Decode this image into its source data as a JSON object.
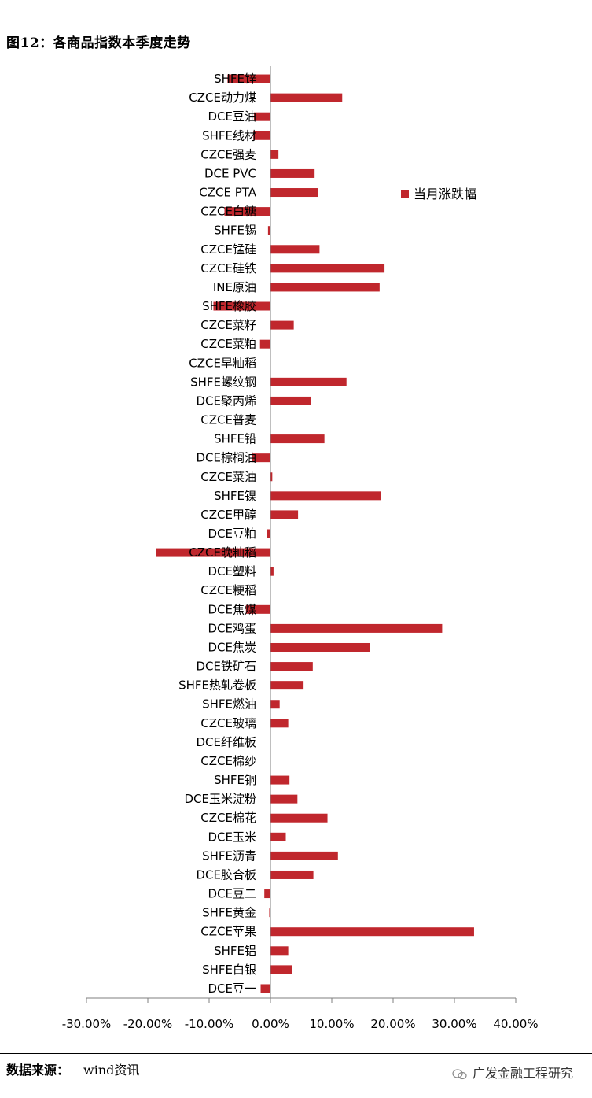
{
  "title": "图12：各商品指数本季度走势",
  "source": {
    "label": "数据来源：",
    "value": "wind资讯"
  },
  "watermark": "广发金融工程研究",
  "colors": {
    "bar": "#c0272d",
    "axis": "#7f7f7f"
  },
  "chart_data": {
    "type": "bar",
    "orientation": "horizontal",
    "legend": {
      "label": "当月涨跌幅",
      "position": "top-right"
    },
    "xlim": [
      -30,
      40
    ],
    "x_ticks": [
      -30,
      -20,
      -10,
      0,
      10,
      20,
      30,
      40
    ],
    "x_tick_labels": [
      "-30.00%",
      "-20.00%",
      "-10.00%",
      "0.00%",
      "10.00%",
      "20.00%",
      "30.00%",
      "40.00%"
    ],
    "categories": [
      "SHFE锌",
      "CZCE动力煤",
      "DCE豆油",
      "SHFE线材",
      "CZCE强麦",
      "DCE PVC",
      "CZCE PTA",
      "CZCE白糖",
      "SHFE锡",
      "CZCE锰硅",
      "CZCE硅铁",
      "INE原油",
      "SHFE橡胶",
      "CZCE菜籽",
      "CZCE菜粕",
      "CZCE早籼稻",
      "SHFE螺纹钢",
      "DCE聚丙烯",
      "CZCE普麦",
      "SHFE铅",
      "DCE棕榈油",
      "CZCE菜油",
      "SHFE镍",
      "CZCE甲醇",
      "DCE豆粕",
      "CZCE晚籼稻",
      "DCE塑料",
      "CZCE粳稻",
      "DCE焦煤",
      "DCE鸡蛋",
      "DCE焦炭",
      "DCE铁矿石",
      "SHFE热轧卷板",
      "SHFE燃油",
      "CZCE玻璃",
      "DCE纤维板",
      "CZCE棉纱",
      "SHFE铜",
      "DCE玉米淀粉",
      "CZCE棉花",
      "DCE玉米",
      "SHFE沥青",
      "DCE胶合板",
      "DCE豆二",
      "SHFE黄金",
      "CZCE苹果",
      "SHFE铝",
      "SHFE白银",
      "DCE豆一"
    ],
    "values": [
      -7.0,
      11.7,
      -2.7,
      -2.8,
      1.3,
      7.2,
      7.8,
      -7.5,
      -0.4,
      8.0,
      18.6,
      17.8,
      -9.3,
      3.8,
      -1.7,
      0.0,
      12.4,
      6.6,
      0.0,
      8.8,
      -3.0,
      0.3,
      18.0,
      4.5,
      -0.6,
      -18.7,
      0.5,
      0.0,
      -4.0,
      28.0,
      16.2,
      6.9,
      5.4,
      1.5,
      2.9,
      0.0,
      0.0,
      3.1,
      4.4,
      9.3,
      2.5,
      11.0,
      7.0,
      -1.0,
      -0.2,
      33.2,
      2.9,
      3.5,
      -1.6
    ]
  }
}
